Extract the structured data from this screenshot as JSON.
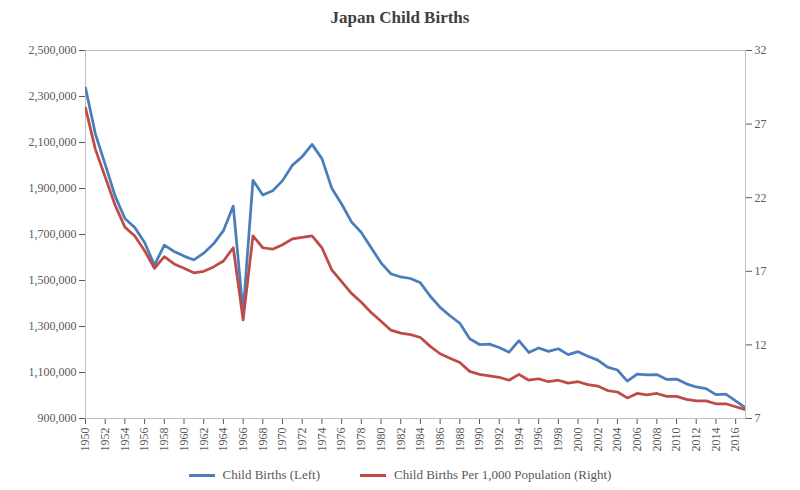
{
  "chart_data": {
    "type": "line",
    "title": "Japan Child Births",
    "x": [
      1950,
      1951,
      1952,
      1953,
      1954,
      1955,
      1956,
      1957,
      1958,
      1959,
      1960,
      1961,
      1962,
      1963,
      1964,
      1965,
      1966,
      1967,
      1968,
      1969,
      1970,
      1971,
      1972,
      1973,
      1974,
      1975,
      1976,
      1977,
      1978,
      1979,
      1980,
      1981,
      1982,
      1983,
      1984,
      1985,
      1986,
      1987,
      1988,
      1989,
      1990,
      1991,
      1992,
      1993,
      1994,
      1995,
      1996,
      1997,
      1998,
      1999,
      2000,
      2001,
      2002,
      2003,
      2004,
      2005,
      2006,
      2007,
      2008,
      2009,
      2010,
      2011,
      2012,
      2013,
      2014,
      2015,
      2016,
      2017
    ],
    "xlim": [
      1950,
      2017
    ],
    "xticks": [
      1950,
      1952,
      1954,
      1956,
      1958,
      1960,
      1962,
      1964,
      1966,
      1968,
      1970,
      1972,
      1974,
      1976,
      1978,
      1980,
      1982,
      1984,
      1986,
      1988,
      1990,
      1992,
      1994,
      1996,
      1998,
      2000,
      2002,
      2004,
      2006,
      2008,
      2010,
      2012,
      2014,
      2016
    ],
    "ylim": [
      900000,
      2500000
    ],
    "yticks": [
      {
        "value": 900000,
        "label": "900,000"
      },
      {
        "value": 1100000,
        "label": "1,100,000"
      },
      {
        "value": 1300000,
        "label": "1,300,000"
      },
      {
        "value": 1500000,
        "label": "1,500,000"
      },
      {
        "value": 1700000,
        "label": "1,700,000"
      },
      {
        "value": 1900000,
        "label": "1,900,000"
      },
      {
        "value": 2100000,
        "label": "2,100,000"
      },
      {
        "value": 2300000,
        "label": "2,300,000"
      },
      {
        "value": 2500000,
        "label": "2,500,000"
      }
    ],
    "y2lim": [
      7,
      32
    ],
    "y2ticks": [
      7,
      12,
      17,
      22,
      27,
      32
    ],
    "grid": false,
    "legend": "bottom",
    "series": [
      {
        "name": "Child Births (Left)",
        "color": "#4a7ebb",
        "axis": "y",
        "values": [
          2337507,
          2137689,
          2005162,
          1868040,
          1769580,
          1730692,
          1665278,
          1566713,
          1653469,
          1626088,
          1606041,
          1589372,
          1618616,
          1659521,
          1716761,
          1823697,
          1360974,
          1935647,
          1871839,
          1889815,
          1934239,
          2000973,
          2038682,
          2091983,
          2029989,
          1901440,
          1832617,
          1755100,
          1708643,
          1642580,
          1576889,
          1529455,
          1515392,
          1508687,
          1489780,
          1431577,
          1382946,
          1346658,
          1314006,
          1246802,
          1221585,
          1223245,
          1208989,
          1188282,
          1238328,
          1187064,
          1206555,
          1191665,
          1203147,
          1177669,
          1190547,
          1170662,
          1153855,
          1123610,
          1110721,
          1062530,
          1092674,
          1089818,
          1091156,
          1070035,
          1071304,
          1050806,
          1037231,
          1029816,
          1003539,
          1005677,
          976978,
          946065
        ]
      },
      {
        "name": "Child Births Per 1,000 Population (Right)",
        "color": "#be4b48",
        "axis": "y2",
        "values": [
          28.1,
          25.3,
          23.4,
          21.5,
          20.0,
          19.4,
          18.4,
          17.2,
          18.0,
          17.5,
          17.2,
          16.9,
          17.0,
          17.3,
          17.7,
          18.6,
          13.7,
          19.4,
          18.6,
          18.5,
          18.8,
          19.2,
          19.3,
          19.4,
          18.6,
          17.1,
          16.3,
          15.5,
          14.9,
          14.2,
          13.6,
          13.0,
          12.8,
          12.7,
          12.5,
          11.9,
          11.4,
          11.1,
          10.8,
          10.2,
          10.0,
          9.9,
          9.8,
          9.6,
          10.0,
          9.6,
          9.7,
          9.5,
          9.6,
          9.4,
          9.5,
          9.3,
          9.2,
          8.9,
          8.8,
          8.4,
          8.7,
          8.6,
          8.7,
          8.5,
          8.5,
          8.3,
          8.2,
          8.2,
          8.0,
          8.0,
          7.8,
          7.6
        ]
      }
    ]
  }
}
